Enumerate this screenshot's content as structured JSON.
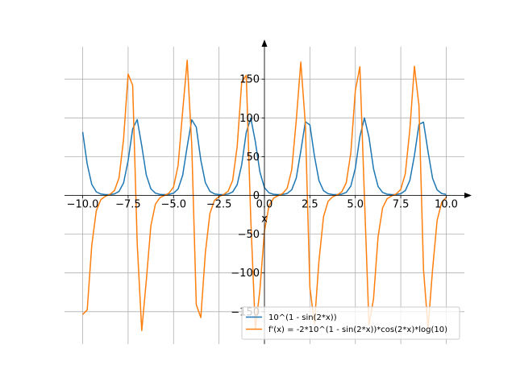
{
  "chart_data": {
    "type": "line",
    "x_label": "x",
    "x": [
      -10,
      -9.75,
      -9.5,
      -9.25,
      -9,
      -8.75,
      -8.5,
      -8.25,
      -8,
      -7.75,
      -7.5,
      -7.25,
      -7,
      -6.75,
      -6.5,
      -6.25,
      -6,
      -5.75,
      -5.5,
      -5.25,
      -5,
      -4.75,
      -4.5,
      -4.25,
      -4,
      -3.75,
      -3.5,
      -3.25,
      -3,
      -2.75,
      -2.5,
      -2.25,
      -2,
      -1.75,
      -1.5,
      -1.25,
      -1,
      -0.75,
      -0.5,
      -0.25,
      0,
      0.25,
      0.5,
      0.75,
      1,
      1.25,
      1.5,
      1.75,
      2,
      2.25,
      2.5,
      2.75,
      3,
      3.25,
      3.5,
      3.75,
      4,
      4.25,
      4.5,
      4.75,
      5,
      5.25,
      5.5,
      5.75,
      6,
      6.25,
      6.5,
      6.75,
      7,
      7.25,
      7.5,
      7.75,
      8,
      8.25,
      8.5,
      8.75,
      9,
      9.25,
      9.5,
      9.75,
      10
    ],
    "series": [
      {
        "name": "10^(1 - sin(2*x))",
        "color": "#1f77b4",
        "values": [
          81.8,
          40.3,
          14.12,
          4.545,
          1.774,
          1.058,
          1.093,
          1.944,
          5.15,
          16.08,
          44.8,
          85.8,
          97.8,
          63.9,
          26.32,
          8.58,
          2.907,
          1.332,
          1.0,
          1.319,
          2.854,
          8.41,
          25.85,
          63.07,
          97.6,
          88.1,
          45.4,
          16.41,
          5.255,
          1.972,
          1.099,
          1.053,
          1.752,
          4.465,
          13.84,
          39.77,
          81.4,
          99.5,
          69.25,
          30.16,
          10,
          3.316,
          1.44,
          1.006,
          1.232,
          2.52,
          7.226,
          22.43,
          57.13,
          94.96,
          90.97,
          50.76,
          19.03,
          6.094,
          2.203,
          1.153,
          1.025,
          1.59,
          3.871,
          11.89,
          34.99,
          75.8,
          100,
          75.08,
          34.4,
          11.65,
          3.8,
          1.571,
          1.022,
          1.162,
          2.237,
          6.216,
          19.41,
          51.5,
          91.5,
          94.5,
          56.36,
          22.0,
          7.08,
          2.481,
          1.222
        ]
      },
      {
        "name": "f'(x) = -2*10^(1 - sin(2*x))*cos(2*x)*log(10)",
        "color": "#ff7f0e",
        "values": [
          -153.7,
          -147.7,
          -64.3,
          -19.66,
          -5.39,
          -1.07,
          1.39,
          6.29,
          22.71,
          72.5,
          156.5,
          142.0,
          -61.9,
          -174.4,
          -110.0,
          -39.4,
          -11.3,
          -2.96,
          -0.02,
          2.89,
          11.02,
          38.6,
          108.5,
          174.4,
          65.5,
          -141.0,
          -157.6,
          -73.8,
          -23.24,
          -6.44,
          -1.43,
          1.02,
          5.28,
          19.26,
          63.1,
          146.6,
          155.0,
          -32.4,
          -172.8,
          -121.9,
          -46.05,
          -13.4,
          -3.58,
          -0.33,
          2.36,
          9.3,
          32.94,
          96.7,
          172.0,
          92.2,
          -118.9,
          -165.7,
          -84.1,
          -27.41,
          -7.65,
          -1.84,
          0.69,
          4.41,
          16.24,
          54.6,
          135.2,
          166.0,
          -2.0,
          -167.1,
          -133.7,
          -53.5,
          -15.88,
          -4.3,
          -0.64,
          1.9,
          7.83,
          28.01,
          85.6,
          166.6,
          116.0,
          -95.5,
          -171.4,
          -95.2,
          -32.2,
          -9.09,
          -2.3
        ]
      }
    ],
    "xlim": [
      -11,
      11
    ],
    "ylim": [
      -191.8,
      191.8
    ],
    "xticks": [
      {
        "value": -10,
        "label": "−10.0"
      },
      {
        "value": -7.5,
        "label": "−7.5"
      },
      {
        "value": -5,
        "label": "−5.0"
      },
      {
        "value": -2.5,
        "label": "−2.5"
      },
      {
        "value": 0,
        "label": "0.0"
      },
      {
        "value": 2.5,
        "label": "2.5"
      },
      {
        "value": 5,
        "label": "5.0"
      },
      {
        "value": 7.5,
        "label": "7.5"
      },
      {
        "value": 10,
        "label": "10.0"
      }
    ],
    "yticks": [
      {
        "value": -150,
        "label": "−150"
      },
      {
        "value": -100,
        "label": "−100"
      },
      {
        "value": -50,
        "label": "−50"
      },
      0,
      50,
      100,
      150
    ],
    "grid": true,
    "legend": "lower right"
  }
}
